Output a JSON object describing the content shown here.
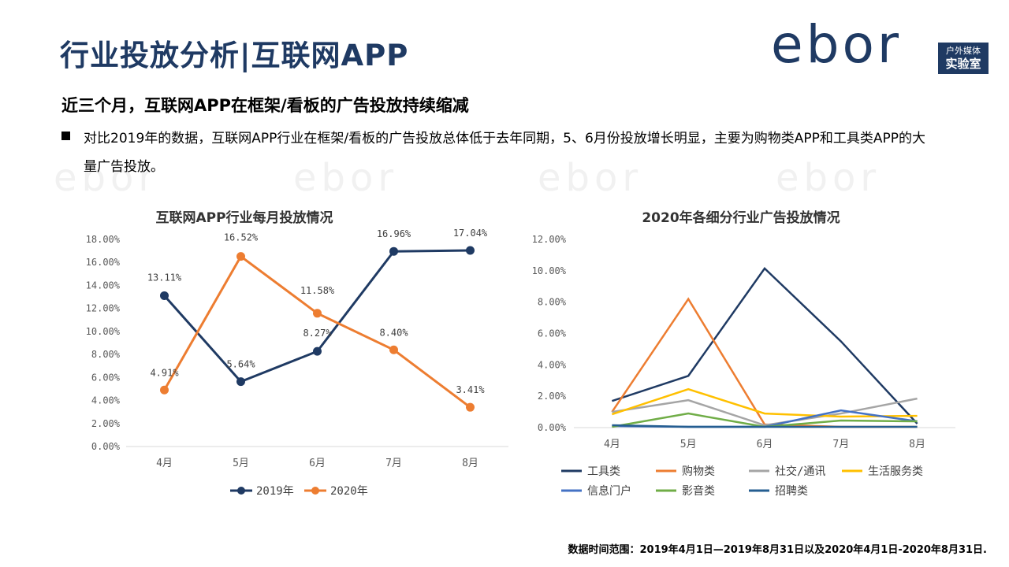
{
  "header": {
    "title": "行业投放分析|互联网APP",
    "logo_text": "ebor",
    "logo_box_line1": "户外媒体",
    "logo_box_line2": "实验室"
  },
  "subtitle": "近三个月，互联网APP在框架/看板的广告投放持续缩减",
  "paragraph": "对比2019年的数据，互联网APP行业在框架/看板的广告投放总体低于去年同期，5、6月份投放增长明显，主要为购物类APP和工具类APP的大量广告投放。",
  "footer": "数据时间范围：2019年4月1日—2019年8月31日以及2020年4月1日-2020年8月31日.",
  "colors": {
    "navy": "#1f3a63",
    "orange": "#ed7d31",
    "gray": "#a5a5a5",
    "yellow": "#ffc000",
    "blue": "#4472c4",
    "green": "#70ad47",
    "darkblue": "#255e91"
  },
  "chart_data": [
    {
      "type": "line",
      "title": "互联网APP行业每月投放情况",
      "categories": [
        "4月",
        "5月",
        "6月",
        "7月",
        "8月"
      ],
      "ylim": [
        0,
        18
      ],
      "yticks": [
        "0.00%",
        "2.00%",
        "4.00%",
        "6.00%",
        "8.00%",
        "10.00%",
        "12.00%",
        "14.00%",
        "16.00%",
        "18.00%"
      ],
      "legend_position": "bottom",
      "series": [
        {
          "name": "2019年",
          "color": "#1f3a63",
          "values": [
            13.11,
            5.64,
            8.27,
            16.96,
            17.04
          ],
          "labels": [
            "13.11%",
            "5.64%",
            "8.27%",
            "16.96%",
            "17.04%"
          ]
        },
        {
          "name": "2020年",
          "color": "#ed7d31",
          "values": [
            4.91,
            16.52,
            11.58,
            8.4,
            3.41
          ],
          "labels": [
            "4.91%",
            "16.52%",
            "11.58%",
            "8.40%",
            "3.41%"
          ]
        }
      ]
    },
    {
      "type": "line",
      "title": "2020年各细分行业广告投放情况",
      "categories": [
        "4月",
        "5月",
        "6月",
        "7月",
        "8月"
      ],
      "ylim": [
        0,
        12
      ],
      "yticks": [
        "0.00%",
        "2.00%",
        "4.00%",
        "6.00%",
        "8.00%",
        "10.00%",
        "12.00%"
      ],
      "legend_position": "bottom",
      "series": [
        {
          "name": "工具类",
          "color": "#1f3a63",
          "values": [
            1.7,
            3.3,
            10.15,
            5.5,
            0.25
          ]
        },
        {
          "name": "购物类",
          "color": "#ed7d31",
          "values": [
            1.0,
            8.2,
            0.2,
            0.05,
            0.05
          ]
        },
        {
          "name": "社交/通讯",
          "color": "#a5a5a5",
          "values": [
            1.0,
            1.75,
            0.15,
            0.9,
            1.85
          ]
        },
        {
          "name": "生活服务类",
          "color": "#ffc000",
          "values": [
            0.85,
            2.45,
            0.9,
            0.7,
            0.75
          ]
        },
        {
          "name": "信息门户",
          "color": "#4472c4",
          "values": [
            0.1,
            0.05,
            0.05,
            1.1,
            0.4
          ]
        },
        {
          "name": "影音类",
          "color": "#70ad47",
          "values": [
            0.05,
            0.9,
            0.05,
            0.45,
            0.4
          ]
        },
        {
          "name": "招聘类",
          "color": "#255e91",
          "values": [
            0.15,
            0.05,
            0.05,
            0.05,
            0.05
          ]
        }
      ]
    }
  ]
}
